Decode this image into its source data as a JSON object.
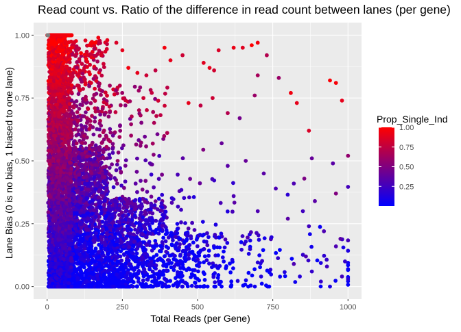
{
  "chart_data": {
    "type": "scatter",
    "title": "Read count vs. Ratio of the difference in read count between lanes (per gene)",
    "xlabel": "Total Reads (per Gene)",
    "ylabel": "Lane Bias (0 is no bias, 1 biased to one lane)",
    "xlim": [
      -45,
      1045
    ],
    "ylim": [
      -0.05,
      1.05
    ],
    "xticks": [
      0,
      250,
      500,
      750,
      1000
    ],
    "xtick_labels": [
      "0",
      "250",
      "500",
      "750",
      "1000"
    ],
    "yticks": [
      0,
      0.25,
      0.5,
      0.75,
      1
    ],
    "ytick_labels": [
      "0.00",
      "0.25",
      "0.50",
      "0.75",
      "1.00"
    ],
    "grid": true,
    "legend": {
      "title": "Prop_Single_Ind",
      "placement": "right",
      "range": [
        0,
        1
      ],
      "ticks": [
        0.25,
        0.5,
        0.75,
        1
      ],
      "tick_labels": [
        "0.25",
        "0.50",
        "0.75",
        "1.00"
      ],
      "low_color": "#0000FF",
      "high_color": "#FF0000",
      "na_color": "#7F7F7F"
    },
    "panel_color": "#EBEBEB",
    "grid_color": "#FFFFFF",
    "points": [
      [
        960,
        0.81,
        0.97
      ],
      [
        940,
        0.82,
        0.98
      ],
      [
        980,
        0.74,
        0.9
      ],
      [
        870,
        0.62,
        0.85
      ],
      [
        810,
        0.77,
        0.94
      ],
      [
        830,
        0.73,
        0.9
      ],
      [
        680,
        0.96,
        1.0
      ],
      [
        700,
        0.97,
        0.95
      ],
      [
        620,
        0.95,
        0.92
      ],
      [
        650,
        0.95,
        0.88
      ],
      [
        730,
        0.92,
        0.7
      ],
      [
        570,
        0.94,
        0.85
      ],
      [
        390,
        0.95,
        0.95
      ],
      [
        410,
        0.9,
        0.9
      ],
      [
        450,
        0.92,
        0.8
      ],
      [
        520,
        0.89,
        0.88
      ],
      [
        540,
        0.87,
        0.9
      ],
      [
        555,
        0.86,
        0.82
      ],
      [
        700,
        0.84,
        0.65
      ],
      [
        770,
        0.83,
        0.6
      ],
      [
        550,
        0.75,
        0.8
      ],
      [
        470,
        0.73,
        0.9
      ],
      [
        510,
        0.72,
        0.75
      ],
      [
        600,
        0.69,
        0.7
      ],
      [
        690,
        0.76,
        0.6
      ],
      [
        640,
        0.67,
        0.45
      ],
      [
        880,
        0.51,
        0.4
      ],
      [
        950,
        0.49,
        0.35
      ],
      [
        960,
        0.37,
        0.5
      ],
      [
        890,
        0.34,
        0.35
      ],
      [
        820,
        0.41,
        0.3
      ],
      [
        850,
        0.3,
        0.25
      ],
      [
        760,
        0.39,
        0.3
      ],
      [
        800,
        0.27,
        0.35
      ],
      [
        920,
        0.22,
        0.3
      ],
      [
        870,
        0.24,
        0.25
      ],
      [
        990,
        0.1,
        0.2
      ],
      [
        1000,
        0.03,
        0.15
      ],
      [
        980,
        0.04,
        0.25
      ],
      [
        960,
        0.16,
        0.3
      ],
      [
        975,
        0.19,
        0.35
      ],
      [
        930,
        0.08,
        0.25
      ],
      [
        940,
        0.0,
        0.1
      ],
      [
        910,
        0.02,
        0.2
      ],
      [
        860,
        0.12,
        0.3
      ],
      [
        880,
        0.06,
        0.2
      ],
      [
        840,
        0.04,
        0.15
      ],
      [
        820,
        0.09,
        0.3
      ],
      [
        720,
        0.45,
        0.35
      ],
      [
        660,
        0.5,
        0.4
      ],
      [
        600,
        0.48,
        0.35
      ],
      [
        580,
        0.57,
        0.4
      ],
      [
        620,
        0.36,
        0.3
      ],
      [
        700,
        0.3,
        0.3
      ],
      [
        170,
        0.99,
        0.95
      ],
      [
        200,
        0.98,
        0.9
      ],
      [
        230,
        0.97,
        0.85
      ],
      [
        270,
        0.87,
        0.95
      ],
      [
        300,
        0.85,
        0.9
      ],
      [
        180,
        0.92,
        0.85
      ],
      [
        140,
        0.96,
        0.92
      ],
      [
        160,
        0.97,
        1.0
      ],
      [
        330,
        0.84,
        0.8
      ],
      [
        360,
        0.86,
        0.75
      ],
      [
        320,
        0.75,
        0.8
      ],
      [
        250,
        0.94,
        0.9
      ]
    ]
  }
}
